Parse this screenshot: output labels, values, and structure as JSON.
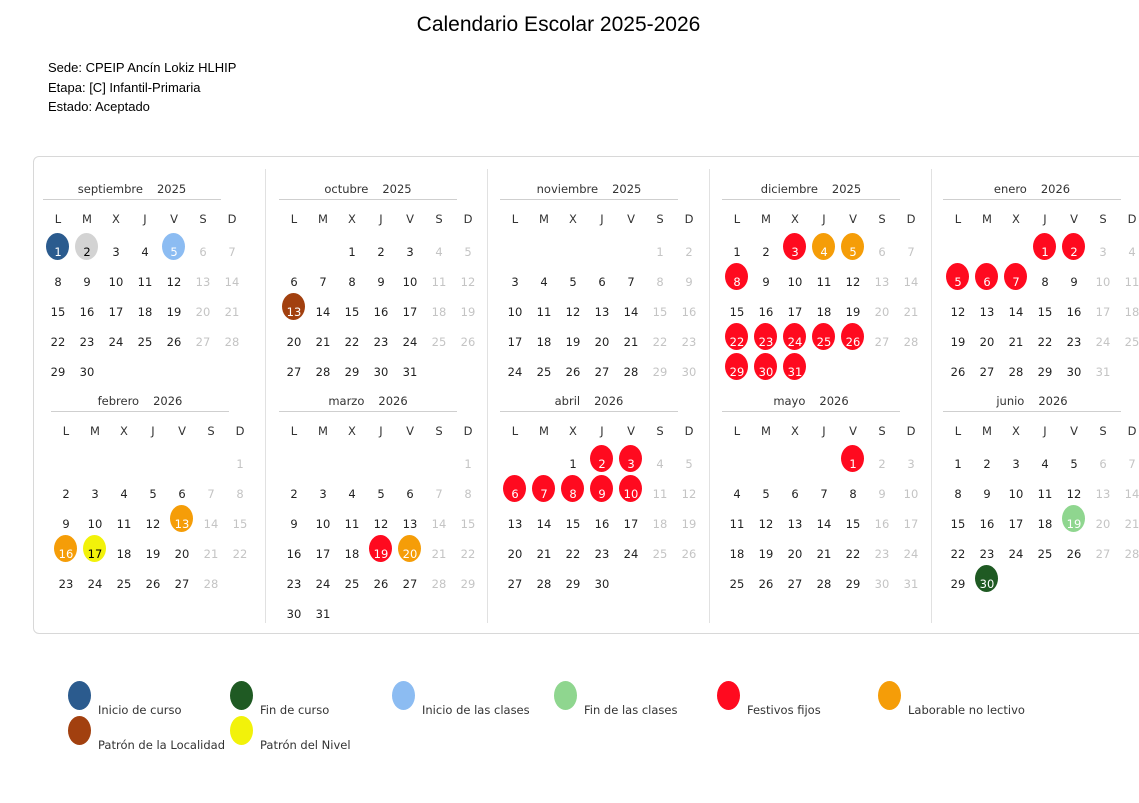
{
  "title": "Calendario Escolar 2025-2026",
  "meta": {
    "sede": "Sede: CPEIP Ancín Lokiz HLHIP",
    "etapa": "Etapa: [C] Infantil-Primaria",
    "estado": "Estado: Aceptado"
  },
  "weekdays": [
    "L",
    "M",
    "X",
    "J",
    "V",
    "S",
    "D"
  ],
  "colors": {
    "inicio_curso": "#2b5b8e",
    "fin_curso": "#1f5a23",
    "inicio_clases": "#8cbcf2",
    "fin_clases": "#8fd68f",
    "festivo": "#ff0a1f",
    "laborable": "#f59d08",
    "patron_localidad": "#a2400f",
    "patron_nivel": "#f2f20a",
    "gris": "#d3d3d3"
  },
  "months": [
    {
      "name": "septiembre",
      "year": "2025",
      "first_weekday": 0,
      "days": 30,
      "marks": [
        {
          "day": 1,
          "type": "inicio_curso"
        },
        {
          "day": 2,
          "type": "gris"
        },
        {
          "day": 5,
          "type": "inicio_clases"
        }
      ]
    },
    {
      "name": "octubre",
      "year": "2025",
      "first_weekday": 2,
      "days": 31,
      "marks": [
        {
          "day": 13,
          "type": "patron_localidad"
        }
      ]
    },
    {
      "name": "noviembre",
      "year": "2025",
      "first_weekday": 5,
      "days": 30,
      "marks": []
    },
    {
      "name": "diciembre",
      "year": "2025",
      "first_weekday": 0,
      "days": 31,
      "marks": [
        {
          "day": 3,
          "type": "festivo"
        },
        {
          "day": 4,
          "type": "laborable"
        },
        {
          "day": 5,
          "type": "laborable"
        },
        {
          "day": 8,
          "type": "festivo"
        },
        {
          "day": 22,
          "type": "festivo"
        },
        {
          "day": 23,
          "type": "festivo"
        },
        {
          "day": 24,
          "type": "festivo"
        },
        {
          "day": 25,
          "type": "festivo"
        },
        {
          "day": 26,
          "type": "festivo"
        },
        {
          "day": 29,
          "type": "festivo"
        },
        {
          "day": 30,
          "type": "festivo"
        },
        {
          "day": 31,
          "type": "festivo"
        }
      ]
    },
    {
      "name": "enero",
      "year": "2026",
      "first_weekday": 3,
      "days": 31,
      "marks": [
        {
          "day": 1,
          "type": "festivo"
        },
        {
          "day": 2,
          "type": "festivo"
        },
        {
          "day": 5,
          "type": "festivo"
        },
        {
          "day": 6,
          "type": "festivo"
        },
        {
          "day": 7,
          "type": "festivo"
        }
      ]
    },
    {
      "name": "febrero",
      "year": "2026",
      "first_weekday": 6,
      "days": 28,
      "marks": [
        {
          "day": 13,
          "type": "laborable"
        },
        {
          "day": 16,
          "type": "laborable"
        },
        {
          "day": 17,
          "type": "patron_nivel"
        }
      ]
    },
    {
      "name": "marzo",
      "year": "2026",
      "first_weekday": 6,
      "days": 31,
      "marks": [
        {
          "day": 19,
          "type": "festivo"
        },
        {
          "day": 20,
          "type": "laborable"
        }
      ]
    },
    {
      "name": "abril",
      "year": "2026",
      "first_weekday": 2,
      "days": 30,
      "marks": [
        {
          "day": 2,
          "type": "festivo"
        },
        {
          "day": 3,
          "type": "festivo"
        },
        {
          "day": 6,
          "type": "festivo"
        },
        {
          "day": 7,
          "type": "festivo"
        },
        {
          "day": 8,
          "type": "festivo"
        },
        {
          "day": 9,
          "type": "festivo"
        },
        {
          "day": 10,
          "type": "festivo"
        }
      ]
    },
    {
      "name": "mayo",
      "year": "2026",
      "first_weekday": 4,
      "days": 31,
      "marks": [
        {
          "day": 1,
          "type": "festivo"
        }
      ]
    },
    {
      "name": "junio",
      "year": "2026",
      "first_weekday": 0,
      "days": 30,
      "marks": [
        {
          "day": 19,
          "type": "fin_clases"
        },
        {
          "day": 30,
          "type": "fin_curso"
        }
      ]
    }
  ],
  "legend": [
    {
      "label": "Inicio de curso",
      "type": "inicio_curso"
    },
    {
      "label": "Fin de curso",
      "type": "fin_curso"
    },
    {
      "label": "Inicio de las clases",
      "type": "inicio_clases"
    },
    {
      "label": "Fin de las clases",
      "type": "fin_clases"
    },
    {
      "label": "Festivos fijos",
      "type": "festivo"
    },
    {
      "label": "Laborable no lectivo",
      "type": "laborable"
    },
    {
      "label": "Patrón de la Localidad",
      "type": "patron_localidad"
    },
    {
      "label": "Patrón del Nivel",
      "type": "patron_nivel"
    }
  ]
}
